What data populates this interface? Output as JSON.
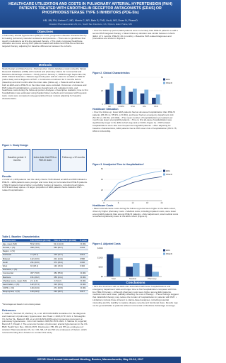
{
  "header": {
    "title": "HEALTHCARE UTILIZATION AND COSTS IN PULMONARY ARTERIAL HYPERTENSION (PAH) PATIENTS TREATED WITH ENDOTHELIN RECEPTOR ANTAGONISTS (ERAS) OR PHOSPHODIESTERASE TYPE 5 INHIBITORS (PDE-5Is)",
    "authors": "HB, JW, PH, Lieben C, MD, Morris C, NR, Bain S, PhD, Ha A, MS, Duan N, PharmD",
    "affiliation": "¹Actelion Pharmaceuticals US, Inc., South San Francisco, CA; ²Optum, Eden Prairie, MN"
  },
  "sections": [
    {
      "heading": "Objectives",
      "text": "• Pulmonary arterial hypertension (PAH) is a rare, progressive disease characterized by increasing pulmonary vascular resistance and pressure. • There are no guidelines that specify medications as first-line targeted therapy. • This study compared healthcare utilization and costs among PAH patients treated with ERAs and PDE-5Is as first-line targeted therapy, adjusting for baseline differences between the cohorts."
    },
    {
      "heading": "Methods",
      "text": "Study Design and Data Source • Retrospective claims database study using the Optum Research Database (ORD) with medical and pharmacy claims for commercial and Medicare Advantage enrollees. • Study period: January 1, 2008 through September 30, 2015. Patient Selection • Patients aged ≥18 years with ≥1 claim for an ERA or PDE-5I (index date) and a diagnosis of PAH. • Continuous enrollment for 6 months before (baseline) and ≥12 months after the index date (follow-up). • Patients with a claim for both an ERA and a PDE-5I on the index date were excluded. Outcomes • All-cause and PAH-related hospitalizations, emergency department and outpatient visits, and healthcare costs during the follow-up period. Analyses • Descriptive statistics; time to first hospitalization was estimated using Kaplan-Meier methods and compared with log-rank tests; costs were compared using generalized linear models adjusting for baseline characteristics."
    },
    {
      "heading": "Results",
      "text": "• A total of 1,326 patients met the study criteria: 518 initiated an ERA and 808 initiated a PDE-5I. • ERA patients were younger and more likely to be female than PDE-5I patients. • PDE-5I patients had a higher comorbidity burden at baseline, including heart failure, COPD and sleep apnea. • A larger proportion of ERA patients had a baseline PAH-related hospitalization."
    },
    {
      "heading": "References",
      "text": "1. Galiè N, Humbert M, Vachiery JL, et al. 2015 ESC/ERS Guidelines for the diagnosis and treatment of pulmonary hypertension. Eur Heart J. 2016;37:67-119. 2. McLaughlin VV, Archer SL, Badesch DB, et al. ACCF/AHA 2009 expert consensus document on pulmonary hypertension. J Am Coll Cardiol. 2009;53:1573-1619. 3. Sikirica M, Iorga SR, Bancroft T, Potash J. The economic burden of pulmonary arterial hypertension in the US. BMC Health Serv Res. 2014;14:676. Disclosures: HB, JW and PH are employees of Actelion Pharmaceuticals US, Inc. CM, SB, AH and ND are employees of Optum, which received funding from Actelion to conduct this study."
    },
    {
      "heading": "",
      "text": "• Over the follow-up period, ERA patients were more likely than PDE-5I patients to add a second PAH-targeted therapy. • Mean follow-up duration was similar between cohorts (ERA: 27.1 months; PDE-5I: 26.4 months). • Baseline PAH-related diagnoses and procedures are shown in Figure 2."
    },
    {
      "heading": "Healthcare Utilization",
      "text": "• Over the follow-up, fewer ERA patients had an all-cause hospitalization than PDE-5I patients (45.4% vs. 55.9%, p<0.001), and fewer had an emergency department visit (52.1% vs. 60.3%, p=0.004). • The mean number of hospitalizations per patient per month was lower among ERA patients. • Time to first all-cause hospitalization was significantly longer in the ERA cohort (log-rank p<0.001; Figure 3). • PAH-related hospitalizations were also less frequent among ERA patients. • After adjusting for baseline characteristics, ERA patients had a 25% lower risk of hospitalization (HR 0.75; 95% CI 0.63-0.89)."
    },
    {
      "heading": "Healthcare Costs",
      "text": "• Mean total all-cause costs during the follow-up period were higher in the ERA cohort, driven by higher pharmacy costs. • Medical costs, including inpatient costs, were lower among ERA patients than among PDE-5I patients. • After adjustment, total medical costs remained significantly lower in the ERA cohort (Figure 4)."
    },
    {
      "heading": "Conclusions",
      "text": "• First-line treatment with an ERA was associated with fewer hospitalizations and emergency department visits and longer time to first hospitalization compared with first-line PDE-5I therapy. • Although pharmacy costs were higher among ERA patients, medical costs were lower, partially offsetting the cost of therapy. • These findings suggest that initial ERA therapy may reduce the burden of hospitalization in patients with PAH. • Limitations include those inherent to claims-based analyses, including potential miscoding and the inability to capture disease severity and functional class. Results may not be generalizable to patients without commercial or Medicare Advantage coverage."
    }
  ],
  "figure1": {
    "title": "Figure 1. Study Design",
    "boxes": [
      "Baseline period: 6 months",
      "Index date: first ERA or PDE-5I claim",
      "Follow-up: ≥12 months"
    ]
  },
  "table1": {
    "title": "Table 1. Baseline Characteristics",
    "columns": [
      "Characteristic",
      "ERA Patients (N=518)",
      "PDE-5I Patients (N=808)",
      "P-value"
    ],
    "rows": [
      [
        "Age, mean (SD)",
        "55.2 (15.1)",
        "61.4 (14.3)",
        "<0.001"
      ],
      [
        "Female, n (%)",
        "398 (76.8)",
        "563 (69.7)",
        "0.004"
      ],
      [
        "Region, n (%)",
        "",
        "",
        ""
      ],
      [
        "Northeast",
        "71 (13.7)",
        "103 (12.7)",
        "0.612"
      ],
      [
        "Midwest",
        "122 (23.6)",
        "201 (24.9)",
        "0.586"
      ],
      [
        "South",
        "231 (44.6)",
        "372 (46.0)",
        "0.606"
      ],
      [
        "West",
        "94 (18.1)",
        "132 (16.3)",
        "0.392"
      ],
      [
        "Insurance, n (%)",
        "",
        "",
        ""
      ],
      [
        "Commercial",
        "367 (70.8)",
        "452 (55.9)",
        "<0.001"
      ],
      [
        "Medicare",
        "151 (29.2)",
        "356 (44.1)",
        "<0.001"
      ],
      [
        "Charlson score, mean (SD)",
        "2.1 (1.9)",
        "2.8 (2.2)",
        "<0.001"
      ],
      [
        "Heart failure, n (%)",
        "142 (27.4)",
        "316 (39.1)",
        "<0.001"
      ],
      [
        "COPD, n (%)",
        "129 (24.9)",
        "271 (33.5)",
        "<0.001"
      ],
      [
        "Sleep apnea, n (%)",
        "118 (22.8)",
        "232 (28.7)",
        "0.017"
      ]
    ],
    "note": "*Percentages are based on non-missing values"
  },
  "figure2": {
    "type": "bar",
    "title": "Figure 2. Clinical Characteristics",
    "categories": [
      "HF",
      "COPD",
      "OSA",
      "DM",
      "CKD"
    ],
    "series": [
      {
        "name": "ERA",
        "color": "#1f3d7a",
        "values": [
          27,
          25,
          23,
          20,
          12
        ]
      },
      {
        "name": "PDE-5I",
        "color": "#7fb2e0",
        "values": [
          39,
          34,
          29,
          27,
          18
        ]
      }
    ],
    "ylim": [
      0,
      50
    ],
    "yticks": [
      0,
      25,
      50
    ]
  },
  "figure3": {
    "type": "line",
    "title": "Figure 3. Unadjusted Time to Hospitalization*",
    "x": [
      0,
      6,
      12,
      18,
      24
    ],
    "series": [
      {
        "name": "ERA",
        "color": "#1f3d7a",
        "values": [
          0,
          24,
          34,
          41,
          45
        ]
      },
      {
        "name": "PDE-5I",
        "color": "#7fb2e0",
        "values": [
          0,
          33,
          44,
          51,
          56
        ]
      }
    ],
    "xlim": [
      0,
      24
    ],
    "xticks": [
      0,
      6,
      12,
      18,
      24
    ],
    "ylim": [
      0,
      60
    ],
    "yticks": [
      0,
      20,
      40,
      60
    ]
  },
  "figure4": {
    "type": "bar",
    "title": "Figure 4. Adjusted Costs",
    "categories": [
      "Total",
      "Medical",
      "Pharmacy"
    ],
    "series": [
      {
        "name": "ERA",
        "color": "#1f3d7a",
        "values": [
          118000,
          52000,
          66000
        ]
      },
      {
        "name": "PDE-5I",
        "color": "#7fb2e0",
        "values": [
          96000,
          71000,
          25000
        ]
      }
    ],
    "ylim": [
      0,
      150000
    ],
    "yticks": [
      {
        "value": 0,
        "label": "$0"
      },
      {
        "value": 50000,
        "label": "$50K"
      },
      {
        "value": 100000,
        "label": "$100K"
      },
      {
        "value": 150000,
        "label": "$150K"
      }
    ]
  },
  "footer": "ISPOR 22nd Annual International Meeting, Boston, Massachusetts, May 20-24, 2017"
}
